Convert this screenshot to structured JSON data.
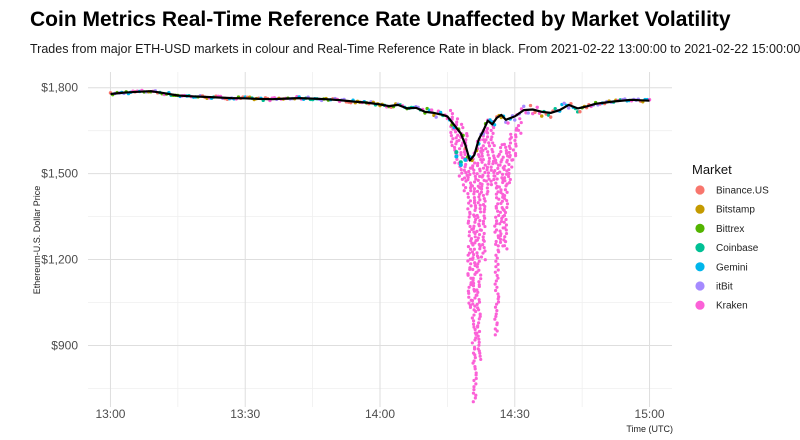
{
  "header": {
    "title": "Coin Metrics Real-Time Reference Rate Unaffected by Market Volatility",
    "subtitle": "Trades from major ETH-USD markets in colour and Real-Time Reference Rate in black. From 2021-02-22 13:00:00 to 2021-02-22 15:00:00."
  },
  "chart_data": {
    "type": "scatter",
    "title": "Coin Metrics Real-Time Reference Rate Unaffected by Market Volatility",
    "subtitle": "Trades from major ETH-USD markets in colour and Real-Time Reference Rate in black. From 2021-02-22 13:00:00 to 2021-02-22 15:00:00.",
    "xlabel": "Time (UTC)",
    "ylabel": "Ethereum-U.S. Dollar Price",
    "x_ticks": [
      "13:00",
      "13:30",
      "14:00",
      "14:30",
      "15:00"
    ],
    "y_ticks": [
      "$1,800",
      "$1,500",
      "$1,200",
      "$900"
    ],
    "xlim": [
      "2021-02-22 12:55",
      "2021-02-22 15:05"
    ],
    "ylim": [
      685,
      1855
    ],
    "grid": true,
    "legend": {
      "title": "Market",
      "position": "right",
      "entries": [
        "Binance.US",
        "Bitstamp",
        "Bittrex",
        "Coinbase",
        "Gemini",
        "itBit",
        "Kraken"
      ]
    },
    "colors": {
      "Binance.US": "#F8766D",
      "Bitstamp": "#C49A00",
      "Bittrex": "#53B400",
      "Coinbase": "#00C094",
      "Gemini": "#00B6EB",
      "itBit": "#A58AFF",
      "Kraken": "#FB61D7",
      "reference_rate": "#000000"
    },
    "reference_rate": {
      "name": "Real-Time Reference Rate",
      "x": [
        "13:00",
        "13:03",
        "13:06",
        "13:09",
        "13:12",
        "13:15",
        "13:18",
        "13:21",
        "13:24",
        "13:27",
        "13:30",
        "13:33",
        "13:36",
        "13:39",
        "13:42",
        "13:45",
        "13:48",
        "13:51",
        "13:54",
        "13:57",
        "14:00",
        "14:02",
        "14:04",
        "14:06",
        "14:08",
        "14:10",
        "14:12",
        "14:14",
        "14:15",
        "14:16",
        "14:17",
        "14:18",
        "14:19",
        "14:20",
        "14:21",
        "14:22",
        "14:23",
        "14:24",
        "14:25",
        "14:26",
        "14:27",
        "14:28",
        "14:30",
        "14:32",
        "14:34",
        "14:36",
        "14:38",
        "14:40",
        "14:42",
        "14:44",
        "14:46",
        "14:48",
        "14:50",
        "14:52",
        "14:54",
        "14:56",
        "14:58",
        "15:00"
      ],
      "y": [
        1778,
        1783,
        1786,
        1788,
        1781,
        1773,
        1770,
        1768,
        1766,
        1764,
        1763,
        1761,
        1760,
        1762,
        1764,
        1762,
        1760,
        1757,
        1752,
        1748,
        1742,
        1736,
        1740,
        1728,
        1730,
        1716,
        1712,
        1705,
        1700,
        1680,
        1660,
        1640,
        1600,
        1546,
        1565,
        1620,
        1650,
        1685,
        1672,
        1695,
        1705,
        1688,
        1700,
        1722,
        1724,
        1716,
        1712,
        1722,
        1740,
        1728,
        1735,
        1744,
        1748,
        1752,
        1755,
        1758,
        1756,
        1755
      ]
    },
    "kraken_spike": {
      "description_series": "Kraken",
      "x": [
        "14:16",
        "14:17",
        "14:18",
        "14:19",
        "14:20",
        "14:21",
        "14:22",
        "14:23",
        "14:24",
        "14:25",
        "14:26",
        "14:27",
        "14:28",
        "14:29",
        "14:30",
        "14:31"
      ],
      "low": [
        1600,
        1540,
        1480,
        1440,
        1030,
        705,
        850,
        1200,
        1430,
        1460,
        940,
        1250,
        1240,
        1470,
        1550,
        1640
      ],
      "high": [
        1720,
        1690,
        1670,
        1640,
        1520,
        1560,
        1620,
        1650,
        1660,
        1680,
        1560,
        1600,
        1600,
        1640,
        1660,
        1690
      ]
    }
  }
}
